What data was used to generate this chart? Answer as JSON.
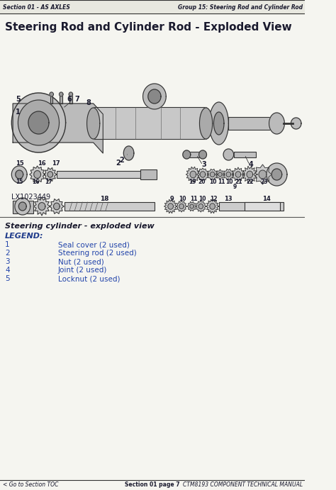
{
  "header_left": "Section 01 - AS AXLES",
  "header_right": "Group 15: Steering Rod and Cylinder Rod",
  "title": "Steering Rod and Cylinder Rod - Exploded View",
  "image_label": "LX1023449",
  "section_title": "Steering cylinder - exploded view",
  "legend_title": "LEGEND:",
  "legend_items": [
    [
      "1",
      "Seal cover (2 used)"
    ],
    [
      "2",
      "Steering rod (2 used)"
    ],
    [
      "3",
      "Nut (2 used)"
    ],
    [
      "4",
      "Joint (2 used)"
    ],
    [
      "5",
      "Locknut (2 used)"
    ]
  ],
  "footer_left": "< Go to Section TOC",
  "footer_center": "Section 01 page 7",
  "footer_right": "CTM8193 COMPONENT TECHNICAL MANUAL",
  "bg_color": "#f5f5f0",
  "header_bg": "#e8e8e0",
  "text_color": "#1a1a2e",
  "blue_color": "#1e3a8a",
  "legend_color": "#2244aa",
  "border_color": "#555555",
  "header_line_color": "#333333",
  "footer_line_color": "#333333"
}
